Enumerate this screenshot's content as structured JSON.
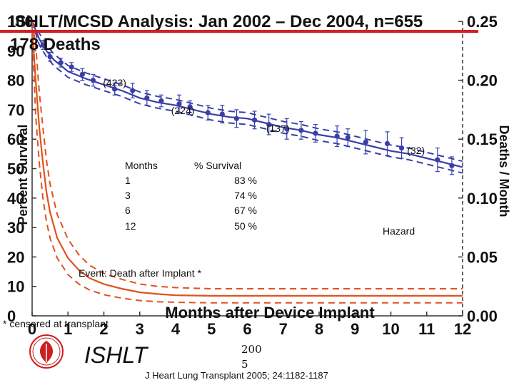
{
  "header": {
    "title": "ISHLT/MCSD Analysis:  Jan 2002 – Dec 2004, n=655",
    "subtitle": "178 Deaths"
  },
  "chart_data": {
    "type": "line",
    "xlabel": "Months after Device Implant",
    "ylabel_left": "Percent Survival",
    "ylabel_right": "Deaths / Month",
    "xlim": [
      0,
      12
    ],
    "ylim_left": [
      0,
      100
    ],
    "ylim_right": [
      0,
      0.25
    ],
    "x_ticks": [
      "0",
      "1",
      "2",
      "3",
      "4",
      "5",
      "6",
      "7",
      "8",
      "9",
      "10",
      "11",
      "12"
    ],
    "y_left_ticks": [
      "0",
      "10",
      "20",
      "30",
      "40",
      "50",
      "60",
      "70",
      "80",
      "90",
      "100"
    ],
    "y_right_ticks": [
      "0.00",
      "0.05",
      "0.10",
      "0.15",
      "0.20",
      "0.25"
    ],
    "grid": false,
    "series": [
      {
        "role": "survival",
        "color": "#3a3fa8",
        "x": [
          0,
          0.2,
          0.4,
          0.6,
          0.8,
          1,
          1.5,
          2,
          2.5,
          3,
          3.5,
          4,
          4.5,
          5,
          5.5,
          6,
          6.5,
          7,
          7.5,
          8,
          8.5,
          9,
          9.5,
          10,
          10.5,
          11,
          11.5,
          12
        ],
        "values": [
          100,
          94,
          90,
          87,
          85,
          83,
          80.5,
          78.5,
          76.5,
          74,
          72.5,
          71.5,
          70,
          68.5,
          67.5,
          67,
          65.5,
          64,
          63,
          61.5,
          60.5,
          59,
          57.5,
          56,
          55,
          53.5,
          52,
          50.5
        ]
      },
      {
        "role": "survival_ci_upper",
        "x": [
          0,
          0.2,
          0.4,
          0.6,
          0.8,
          1,
          1.5,
          2,
          2.5,
          3,
          3.5,
          4,
          4.5,
          5,
          5.5,
          6,
          6.5,
          7,
          7.5,
          8,
          8.5,
          9,
          9.5,
          10,
          10.5,
          11,
          11.5,
          12
        ],
        "values": [
          100,
          96,
          92,
          89,
          87,
          85,
          82.5,
          80.5,
          78.5,
          76,
          74.5,
          73.5,
          72,
          70.5,
          69.5,
          69,
          67.5,
          66,
          65,
          63.5,
          62.5,
          61,
          59.5,
          58,
          57,
          55.5,
          54,
          52.5
        ]
      },
      {
        "role": "survival_ci_lower",
        "x": [
          0,
          0.2,
          0.4,
          0.6,
          0.8,
          1,
          1.5,
          2,
          2.5,
          3,
          3.5,
          4,
          4.5,
          5,
          5.5,
          6,
          6.5,
          7,
          7.5,
          8,
          8.5,
          9,
          9.5,
          10,
          10.5,
          11,
          11.5,
          12
        ],
        "values": [
          100,
          92,
          88,
          85,
          83,
          81,
          78.5,
          76.5,
          74.5,
          72,
          70.5,
          69.5,
          68,
          66.5,
          65.5,
          65,
          63.5,
          62,
          61,
          59.5,
          58.5,
          57,
          55.5,
          54,
          53,
          51.5,
          50,
          48.5
        ]
      },
      {
        "role": "hazard",
        "name": "Hazard",
        "color": "#e0521c",
        "x": [
          0,
          0.1,
          0.2,
          0.3,
          0.4,
          0.5,
          0.7,
          1,
          1.3,
          1.6,
          2,
          2.5,
          3,
          3.5,
          4,
          5,
          6,
          8,
          10,
          12
        ],
        "values": [
          0.245,
          0.2,
          0.16,
          0.13,
          0.105,
          0.088,
          0.066,
          0.049,
          0.039,
          0.032,
          0.027,
          0.023,
          0.02,
          0.0185,
          0.0175,
          0.017,
          0.017,
          0.017,
          0.017,
          0.017
        ]
      },
      {
        "role": "hazard_ci_upper",
        "x": [
          0,
          0.1,
          0.2,
          0.3,
          0.4,
          0.5,
          0.7,
          1,
          1.3,
          1.6,
          2,
          2.5,
          3,
          3.5,
          4,
          5,
          6,
          8,
          10,
          12
        ],
        "values": [
          0.25,
          0.23,
          0.19,
          0.16,
          0.132,
          0.112,
          0.086,
          0.065,
          0.052,
          0.043,
          0.036,
          0.031,
          0.027,
          0.025,
          0.024,
          0.023,
          0.023,
          0.023,
          0.023,
          0.023
        ]
      },
      {
        "role": "hazard_ci_lower",
        "x": [
          0,
          0.1,
          0.2,
          0.3,
          0.4,
          0.5,
          0.7,
          1,
          1.3,
          1.6,
          2,
          2.5,
          3,
          3.5,
          4,
          5,
          6,
          8,
          10,
          12
        ],
        "values": [
          0.24,
          0.17,
          0.13,
          0.1,
          0.08,
          0.066,
          0.049,
          0.035,
          0.027,
          0.022,
          0.018,
          0.015,
          0.013,
          0.012,
          0.0115,
          0.011,
          0.011,
          0.011,
          0.011,
          0.011
        ]
      },
      {
        "role": "observed_points",
        "color": "#3a3fa8",
        "x": [
          0.3,
          0.5,
          0.8,
          1.1,
          1.4,
          1.7,
          2.3,
          2.8,
          3.2,
          3.6,
          4.1,
          4.4,
          4.9,
          5.3,
          5.7,
          6.2,
          6.6,
          7.1,
          7.5,
          7.9,
          8.5,
          8.8,
          9.3,
          9.9,
          10.3,
          11.3,
          11.7
        ],
        "values": [
          92,
          88,
          86,
          84.5,
          82,
          80,
          77,
          76.5,
          74,
          73,
          72,
          71,
          69,
          68.5,
          67,
          66.5,
          65,
          63.5,
          63,
          62,
          61,
          60.5,
          59,
          58.5,
          57,
          53,
          51
        ],
        "err": [
          1.5,
          1.5,
          1.5,
          1.5,
          2,
          2,
          2,
          2.5,
          2.5,
          2,
          3,
          2,
          2.5,
          3,
          3,
          3,
          3.5,
          3.5,
          3,
          3,
          3.5,
          3,
          4,
          4,
          3.5,
          4,
          3
        ]
      }
    ],
    "annotations": [
      {
        "text": "(423)",
        "x": 2.3,
        "y": 78
      },
      {
        "text": "(224)",
        "x": 4.2,
        "y": 68.5
      },
      {
        "text": "(137)",
        "x": 6.85,
        "y": 62.5
      },
      {
        "text": "(32)",
        "x": 10.7,
        "y": 55
      }
    ],
    "survival_table": {
      "headers": [
        "Months",
        "% Survival"
      ],
      "rows": [
        [
          "1",
          "83 %"
        ],
        [
          "3",
          "74 %"
        ],
        [
          "6",
          "67 %"
        ],
        [
          "12",
          "50 %"
        ]
      ]
    },
    "hazard_label": "Hazard",
    "event_label": "Event: Death after Implant *",
    "censor_note": "* censored at transplant"
  },
  "footer": {
    "brand": "ISHLT",
    "year_line1": "200",
    "year_line2": "5",
    "citation": "J Heart Lung Transplant 2005; 24:1182-1187"
  },
  "colors": {
    "accent_red": "#d62020",
    "logo_red": "#cc1f1f"
  }
}
